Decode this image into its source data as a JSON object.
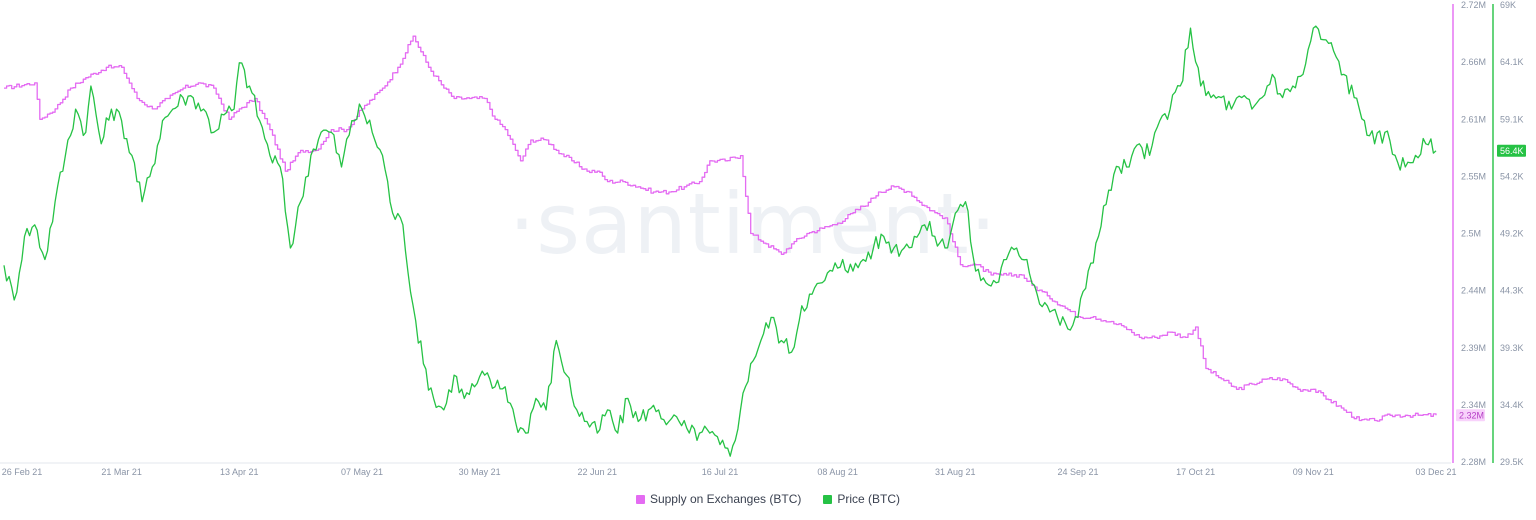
{
  "watermark": "·santiment·",
  "chart_data": {
    "type": "line",
    "x_tick_labels": [
      "26 Feb 21",
      "21 Mar 21",
      "13 Apr 21",
      "07 May 21",
      "30 May 21",
      "22 Jun 21",
      "16 Jul 21",
      "08 Aug 21",
      "31 Aug 21",
      "24 Sep 21",
      "17 Oct 21",
      "09 Nov 21",
      "03 Dec 21"
    ],
    "x_tick_days": [
      0,
      23,
      46,
      70,
      93,
      116,
      140,
      163,
      186,
      210,
      233,
      256,
      280
    ],
    "y_left": {
      "ticks": [
        "2.72M",
        "2.66M",
        "2.61M",
        "2.55M",
        "2.5M",
        "2.44M",
        "2.39M",
        "2.34M",
        "2.28M"
      ],
      "range": [
        2.28,
        2.72
      ],
      "unit": "M"
    },
    "y_right": {
      "ticks": [
        "69K",
        "64.1K",
        "59.1K",
        "54.2K",
        "49.2K",
        "44.3K",
        "39.3K",
        "34.4K",
        "29.5K"
      ],
      "range": [
        29.5,
        69
      ],
      "unit": "K"
    },
    "series": [
      {
        "name": "Supply on Exchanges (BTC)",
        "color": "#e46bf2",
        "axis": "left",
        "last_value_label": "2.32M",
        "points": [
          [
            0,
            2.64
          ],
          [
            6,
            2.645
          ],
          [
            7,
            2.61
          ],
          [
            10,
            2.62
          ],
          [
            13,
            2.64
          ],
          [
            16,
            2.65
          ],
          [
            20,
            2.66
          ],
          [
            23,
            2.66
          ],
          [
            26,
            2.63
          ],
          [
            29,
            2.62
          ],
          [
            32,
            2.63
          ],
          [
            35,
            2.64
          ],
          [
            38,
            2.645
          ],
          [
            41,
            2.64
          ],
          [
            44,
            2.61
          ],
          [
            46,
            2.62
          ],
          [
            49,
            2.63
          ],
          [
            52,
            2.6
          ],
          [
            55,
            2.56
          ],
          [
            58,
            2.58
          ],
          [
            61,
            2.58
          ],
          [
            64,
            2.6
          ],
          [
            67,
            2.6
          ],
          [
            70,
            2.62
          ],
          [
            74,
            2.64
          ],
          [
            77,
            2.66
          ],
          [
            80,
            2.69
          ],
          [
            83,
            2.66
          ],
          [
            86,
            2.64
          ],
          [
            88,
            2.63
          ],
          [
            91,
            2.63
          ],
          [
            94,
            2.63
          ],
          [
            96,
            2.61
          ],
          [
            98,
            2.6
          ],
          [
            100,
            2.58
          ],
          [
            101,
            2.57
          ],
          [
            103,
            2.59
          ],
          [
            106,
            2.59
          ],
          [
            108,
            2.58
          ],
          [
            111,
            2.57
          ],
          [
            114,
            2.56
          ],
          [
            116,
            2.56
          ],
          [
            118,
            2.55
          ],
          [
            121,
            2.55
          ],
          [
            124,
            2.545
          ],
          [
            127,
            2.54
          ],
          [
            130,
            2.54
          ],
          [
            133,
            2.545
          ],
          [
            136,
            2.55
          ],
          [
            138,
            2.57
          ],
          [
            141,
            2.57
          ],
          [
            144,
            2.575
          ],
          [
            146,
            2.5
          ],
          [
            149,
            2.49
          ],
          [
            152,
            2.48
          ],
          [
            154,
            2.49
          ],
          [
            157,
            2.5
          ],
          [
            160,
            2.505
          ],
          [
            163,
            2.51
          ],
          [
            166,
            2.52
          ],
          [
            169,
            2.53
          ],
          [
            171,
            2.54
          ],
          [
            174,
            2.545
          ],
          [
            177,
            2.54
          ],
          [
            179,
            2.53
          ],
          [
            182,
            2.52
          ],
          [
            184,
            2.515
          ],
          [
            187,
            2.47
          ],
          [
            190,
            2.47
          ],
          [
            193,
            2.46
          ],
          [
            196,
            2.46
          ],
          [
            199,
            2.46
          ],
          [
            201,
            2.45
          ],
          [
            204,
            2.44
          ],
          [
            207,
            2.43
          ],
          [
            210,
            2.42
          ],
          [
            213,
            2.42
          ],
          [
            216,
            2.415
          ],
          [
            219,
            2.41
          ],
          [
            222,
            2.4
          ],
          [
            225,
            2.4
          ],
          [
            228,
            2.405
          ],
          [
            231,
            2.4
          ],
          [
            233,
            2.41
          ],
          [
            235,
            2.37
          ],
          [
            238,
            2.36
          ],
          [
            241,
            2.35
          ],
          [
            244,
            2.355
          ],
          [
            247,
            2.36
          ],
          [
            250,
            2.36
          ],
          [
            253,
            2.35
          ],
          [
            256,
            2.35
          ],
          [
            259,
            2.34
          ],
          [
            262,
            2.33
          ],
          [
            265,
            2.32
          ],
          [
            268,
            2.32
          ],
          [
            271,
            2.325
          ],
          [
            274,
            2.325
          ],
          [
            277,
            2.325
          ],
          [
            280,
            2.325
          ]
        ]
      },
      {
        "name": "Price (BTC)",
        "color": "#26c245",
        "axis": "right",
        "last_value_label": "56.4K",
        "points": [
          [
            0,
            46.5
          ],
          [
            2,
            43.5
          ],
          [
            4,
            49
          ],
          [
            6,
            50
          ],
          [
            8,
            47
          ],
          [
            10,
            52
          ],
          [
            12,
            56
          ],
          [
            14,
            60
          ],
          [
            16,
            58
          ],
          [
            17,
            62
          ],
          [
            19,
            57
          ],
          [
            21,
            60
          ],
          [
            23,
            59
          ],
          [
            25,
            56
          ],
          [
            27,
            52
          ],
          [
            29,
            55
          ],
          [
            31,
            59
          ],
          [
            33,
            60
          ],
          [
            35,
            61
          ],
          [
            37,
            61
          ],
          [
            39,
            60
          ],
          [
            41,
            58
          ],
          [
            43,
            59.5
          ],
          [
            45,
            60
          ],
          [
            46,
            64
          ],
          [
            48,
            62
          ],
          [
            50,
            59
          ],
          [
            52,
            56
          ],
          [
            54,
            55
          ],
          [
            56,
            48
          ],
          [
            58,
            52
          ],
          [
            60,
            56
          ],
          [
            62,
            58
          ],
          [
            64,
            58
          ],
          [
            66,
            55
          ],
          [
            68,
            59
          ],
          [
            70,
            60
          ],
          [
            72,
            58
          ],
          [
            74,
            56
          ],
          [
            76,
            51
          ],
          [
            78,
            50
          ],
          [
            80,
            43
          ],
          [
            82,
            38
          ],
          [
            84,
            35
          ],
          [
            86,
            34
          ],
          [
            88,
            37
          ],
          [
            90,
            35
          ],
          [
            92,
            36
          ],
          [
            94,
            37
          ],
          [
            96,
            36
          ],
          [
            98,
            36
          ],
          [
            100,
            33
          ],
          [
            102,
            32
          ],
          [
            104,
            35
          ],
          [
            106,
            34
          ],
          [
            108,
            40
          ],
          [
            110,
            37
          ],
          [
            112,
            34
          ],
          [
            114,
            33
          ],
          [
            116,
            32
          ],
          [
            118,
            34
          ],
          [
            120,
            32
          ],
          [
            122,
            35
          ],
          [
            124,
            33
          ],
          [
            126,
            34
          ],
          [
            128,
            34
          ],
          [
            130,
            33
          ],
          [
            132,
            33
          ],
          [
            134,
            32
          ],
          [
            136,
            32
          ],
          [
            138,
            32
          ],
          [
            140,
            31
          ],
          [
            142,
            30
          ],
          [
            144,
            34
          ],
          [
            146,
            38
          ],
          [
            148,
            40
          ],
          [
            150,
            42
          ],
          [
            152,
            40
          ],
          [
            154,
            39
          ],
          [
            156,
            43
          ],
          [
            158,
            44
          ],
          [
            160,
            45
          ],
          [
            162,
            46
          ],
          [
            164,
            47
          ],
          [
            166,
            46
          ],
          [
            168,
            47
          ],
          [
            170,
            48
          ],
          [
            172,
            49
          ],
          [
            174,
            48
          ],
          [
            176,
            48
          ],
          [
            178,
            49
          ],
          [
            180,
            50
          ],
          [
            182,
            49
          ],
          [
            184,
            48
          ],
          [
            186,
            51
          ],
          [
            188,
            52
          ],
          [
            190,
            46
          ],
          [
            192,
            45
          ],
          [
            194,
            45
          ],
          [
            196,
            47
          ],
          [
            198,
            48
          ],
          [
            200,
            47
          ],
          [
            202,
            44
          ],
          [
            204,
            43
          ],
          [
            206,
            42
          ],
          [
            208,
            41
          ],
          [
            210,
            42
          ],
          [
            212,
            46
          ],
          [
            214,
            49
          ],
          [
            216,
            53
          ],
          [
            218,
            55
          ],
          [
            220,
            55
          ],
          [
            222,
            57
          ],
          [
            224,
            56
          ],
          [
            226,
            59
          ],
          [
            228,
            60
          ],
          [
            230,
            62
          ],
          [
            232,
            67
          ],
          [
            234,
            62
          ],
          [
            236,
            61
          ],
          [
            238,
            61
          ],
          [
            240,
            60
          ],
          [
            242,
            61
          ],
          [
            244,
            60
          ],
          [
            246,
            61
          ],
          [
            248,
            63
          ],
          [
            250,
            61
          ],
          [
            252,
            62
          ],
          [
            254,
            63
          ],
          [
            256,
            67
          ],
          [
            258,
            66
          ],
          [
            260,
            65
          ],
          [
            262,
            63
          ],
          [
            264,
            61
          ],
          [
            266,
            59
          ],
          [
            268,
            57
          ],
          [
            270,
            58
          ],
          [
            272,
            56
          ],
          [
            274,
            55
          ],
          [
            276,
            56
          ],
          [
            278,
            57
          ],
          [
            280,
            56.4
          ]
        ]
      }
    ],
    "legend_position": "bottom-center",
    "grid": false
  },
  "legend": {
    "supply_label": "Supply on Exchanges (BTC)",
    "price_label": "Price (BTC)",
    "supply_color": "#e46bf2",
    "price_color": "#26c245"
  }
}
